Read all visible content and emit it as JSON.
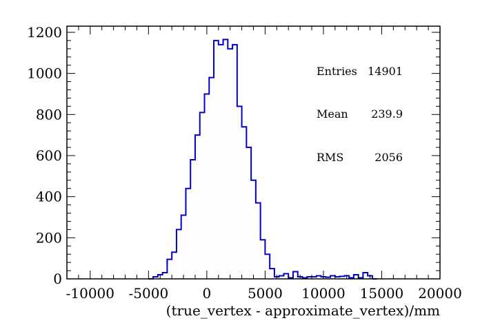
{
  "chart_data": {
    "type": "histogram",
    "title": "",
    "xlabel": "(true_vertex - approximate_vertex)/mm",
    "ylabel": "",
    "xlim": [
      -12000,
      20000
    ],
    "ylim": [
      0,
      1230
    ],
    "x_ticks": [
      -10000,
      -5000,
      0,
      5000,
      10000,
      15000,
      20000
    ],
    "x_tick_labels": [
      "-10000",
      "-5000",
      "0",
      "5000",
      "10000",
      "15000",
      "20000"
    ],
    "y_ticks": [
      0,
      200,
      400,
      600,
      800,
      1000,
      1200
    ],
    "y_tick_labels": [
      "0",
      "200",
      "400",
      "600",
      "800",
      "1000",
      "1200"
    ],
    "grid": false,
    "line_color": "#0000cc",
    "fill_color": "#fdfdfd",
    "bin_width": 400,
    "bins": [
      {
        "x": -5000,
        "y": 0
      },
      {
        "x": -4600,
        "y": 10
      },
      {
        "x": -4200,
        "y": 20
      },
      {
        "x": -3800,
        "y": 30
      },
      {
        "x": -3400,
        "y": 95
      },
      {
        "x": -3000,
        "y": 130
      },
      {
        "x": -2600,
        "y": 240
      },
      {
        "x": -2200,
        "y": 310
      },
      {
        "x": -1800,
        "y": 440
      },
      {
        "x": -1400,
        "y": 580
      },
      {
        "x": -1000,
        "y": 700
      },
      {
        "x": -600,
        "y": 810
      },
      {
        "x": -200,
        "y": 900
      },
      {
        "x": 200,
        "y": 980
      },
      {
        "x": 600,
        "y": 1160
      },
      {
        "x": 1000,
        "y": 1140
      },
      {
        "x": 1400,
        "y": 1165
      },
      {
        "x": 1800,
        "y": 1120
      },
      {
        "x": 2200,
        "y": 1140
      },
      {
        "x": 2600,
        "y": 840
      },
      {
        "x": 3000,
        "y": 740
      },
      {
        "x": 3400,
        "y": 640
      },
      {
        "x": 3800,
        "y": 480
      },
      {
        "x": 4200,
        "y": 370
      },
      {
        "x": 4600,
        "y": 190
      },
      {
        "x": 5000,
        "y": 120
      },
      {
        "x": 5400,
        "y": 50
      },
      {
        "x": 5800,
        "y": 10
      },
      {
        "x": 6200,
        "y": 15
      },
      {
        "x": 6600,
        "y": 25
      },
      {
        "x": 7000,
        "y": 5
      },
      {
        "x": 7400,
        "y": 35
      },
      {
        "x": 7800,
        "y": 10
      },
      {
        "x": 8200,
        "y": 5
      },
      {
        "x": 8600,
        "y": 10
      },
      {
        "x": 9000,
        "y": 10
      },
      {
        "x": 9400,
        "y": 15
      },
      {
        "x": 9800,
        "y": 10
      },
      {
        "x": 10200,
        "y": 8
      },
      {
        "x": 10600,
        "y": 15
      },
      {
        "x": 11000,
        "y": 10
      },
      {
        "x": 11400,
        "y": 12
      },
      {
        "x": 11800,
        "y": 15
      },
      {
        "x": 12200,
        "y": 5
      },
      {
        "x": 12600,
        "y": 20
      },
      {
        "x": 13000,
        "y": 5
      },
      {
        "x": 13400,
        "y": 30
      },
      {
        "x": 13800,
        "y": 15
      },
      {
        "x": 14200,
        "y": 0
      }
    ],
    "stats": {
      "entries_label": "Entries",
      "entries_value": "14901",
      "mean_label": "Mean",
      "mean_value": "239.9",
      "rms_label": "RMS",
      "rms_value": "2056"
    }
  }
}
